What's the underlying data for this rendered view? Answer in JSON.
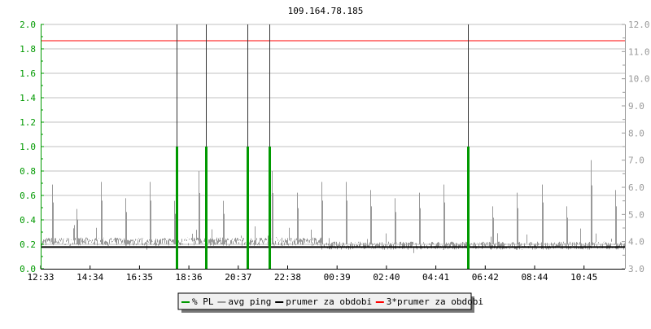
{
  "chart_data": {
    "type": "line",
    "title": "109.164.78.185",
    "x_ticks": [
      "12:33",
      "14:34",
      "16:35",
      "18:36",
      "20:37",
      "22:38",
      "00:39",
      "02:40",
      "04:41",
      "06:42",
      "08:44",
      "10:45"
    ],
    "x_range": [
      "12:33",
      "12:24 (+1 day)"
    ],
    "y_left": {
      "range": [
        0.0,
        2.0
      ],
      "ticks": [
        "0.0",
        "0.2",
        "0.4",
        "0.6",
        "0.8",
        "1.0",
        "1.2",
        "1.4",
        "1.6",
        "1.8",
        "2.0"
      ],
      "color": "#009900"
    },
    "y_right": {
      "range": [
        3.0,
        12.0
      ],
      "ticks": [
        "3.0",
        "4.0",
        "5.0",
        "6.0",
        "7.0",
        "8.0",
        "9.0",
        "10.0",
        "11.0",
        "12.0"
      ],
      "color": "#999999"
    },
    "grid": true,
    "legend_placement": "bottom",
    "series": [
      {
        "name": "% PL",
        "color": "#009900",
        "axis": "left",
        "events": [
          {
            "time": "18:06",
            "value": 1.0
          },
          {
            "time": "19:18",
            "value": 1.0
          },
          {
            "time": "20:59",
            "value": 1.0
          },
          {
            "time": "21:53",
            "value": 1.0
          },
          {
            "time": "05:59",
            "value": 1.0
          }
        ]
      },
      {
        "name": "avg ping",
        "color": "#999999",
        "axis": "right",
        "baseline": [
          {
            "from": "12:33",
            "to": "00:00",
            "value": 4.0
          },
          {
            "from": "00:00",
            "to": "12:24",
            "value": 3.85
          }
        ],
        "hourly_spikes": [
          {
            "time": "13:00",
            "value": 6.1
          },
          {
            "time": "14:00",
            "value": 5.2
          },
          {
            "time": "15:00",
            "value": 6.2
          },
          {
            "time": "16:00",
            "value": 5.6
          },
          {
            "time": "17:00",
            "value": 6.2
          },
          {
            "time": "18:00",
            "value": 5.5
          },
          {
            "time": "19:00",
            "value": 6.6
          },
          {
            "time": "20:00",
            "value": 5.5
          },
          {
            "time": "21:00",
            "value": 7.3
          },
          {
            "time": "22:00",
            "value": 6.6
          },
          {
            "time": "23:00",
            "value": 5.8
          },
          {
            "time": "00:00",
            "value": 6.2
          },
          {
            "time": "01:00",
            "value": 6.2
          },
          {
            "time": "02:00",
            "value": 5.9
          },
          {
            "time": "03:00",
            "value": 5.6
          },
          {
            "time": "04:00",
            "value": 5.8
          },
          {
            "time": "05:00",
            "value": 6.1
          },
          {
            "time": "06:00",
            "value": 5.1
          },
          {
            "time": "07:00",
            "value": 5.3
          },
          {
            "time": "08:00",
            "value": 5.8
          },
          {
            "time": "09:00",
            "value": 6.1
          },
          {
            "time": "10:00",
            "value": 5.3
          },
          {
            "time": "11:00",
            "value": 7.0
          },
          {
            "time": "12:00",
            "value": 5.9
          }
        ]
      },
      {
        "name": "prumer za obdobi",
        "color": "#000000",
        "axis": "right",
        "value": 3.8
      },
      {
        "name": "3*prumer za obdobi",
        "color": "#ff0000",
        "axis": "right",
        "value": 11.4
      }
    ]
  }
}
